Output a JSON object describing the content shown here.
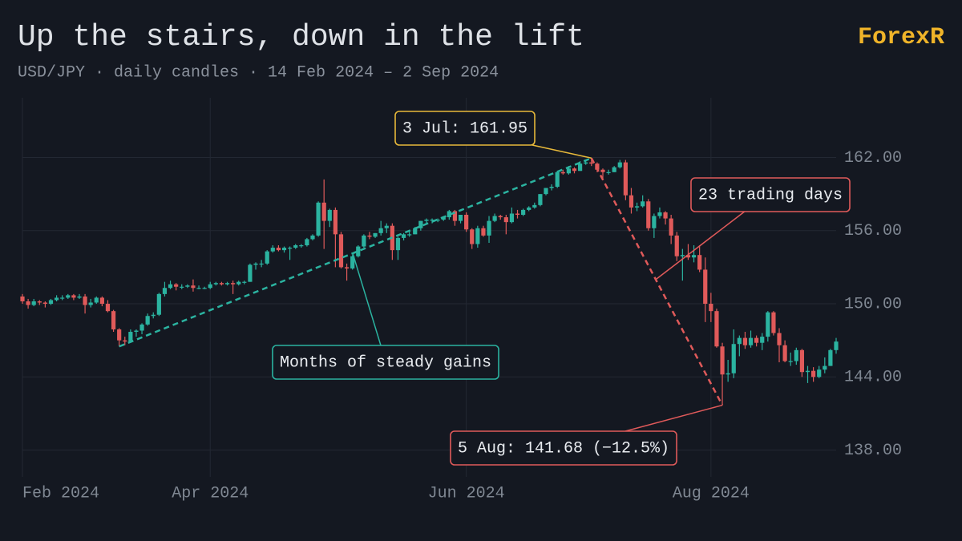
{
  "chart_data": {
    "type": "candlestick",
    "title": "Up the stairs, down in the lift",
    "subtitle": "USD/JPY · daily candles · 14 Feb 2024 – 2 Sep 2024",
    "brand": "ForexR",
    "up_color": "#2bb3a0",
    "down_color": "#e05a5a",
    "grid": true,
    "ylim": [
      135.8,
      166.9
    ],
    "yticks": [
      {
        "value": 138,
        "label": "138.00"
      },
      {
        "value": 144,
        "label": "144.00"
      },
      {
        "value": 150,
        "label": "150.00"
      },
      {
        "value": 156,
        "label": "156.00"
      },
      {
        "value": 162,
        "label": "162.00"
      }
    ],
    "categories": [
      "Feb 2024",
      null,
      null,
      null,
      null,
      null,
      null,
      null,
      null,
      null,
      null,
      null,
      null,
      null,
      null,
      null,
      null,
      null,
      null,
      null,
      null,
      null,
      null,
      null,
      null,
      null,
      null,
      null,
      null,
      null,
      null,
      null,
      null,
      "Apr 2024",
      null,
      null,
      null,
      null,
      null,
      null,
      null,
      null,
      null,
      null,
      null,
      null,
      null,
      null,
      null,
      null,
      null,
      null,
      null,
      null,
      null,
      null,
      null,
      null,
      null,
      null,
      null,
      null,
      null,
      null,
      null,
      null,
      null,
      null,
      null,
      null,
      null,
      null,
      null,
      null,
      null,
      null,
      null,
      null,
      "Jun 2024",
      null,
      null,
      null,
      null,
      null,
      null,
      null,
      null,
      null,
      null,
      null,
      null,
      null,
      null,
      null,
      null,
      null,
      null,
      null,
      null,
      null,
      null,
      null,
      null,
      null,
      null,
      null,
      null,
      null,
      null,
      null,
      null,
      null,
      null,
      null,
      null,
      null,
      null,
      null,
      null,
      null,
      null,
      "Aug 2024",
      null,
      null,
      null,
      null,
      null,
      null,
      null,
      null,
      null,
      null,
      null,
      null,
      null,
      null,
      null,
      null,
      null,
      null,
      null,
      null,
      null,
      null
    ],
    "open": [
      150.6,
      150.2,
      149.9,
      150.2,
      150.1,
      150.0,
      150.3,
      150.5,
      150.5,
      150.7,
      150.5,
      150.6,
      149.9,
      150.1,
      150.5,
      150.0,
      149.4,
      147.9,
      147.0,
      146.9,
      147.7,
      147.8,
      148.3,
      149.0,
      149.1,
      150.8,
      151.3,
      151.6,
      151.4,
      151.4,
      151.5,
      151.3,
      151.3,
      151.3,
      151.6,
      151.7,
      151.6,
      151.7,
      151.6,
      151.8,
      151.8,
      153.2,
      153.3,
      153.3,
      154.3,
      154.6,
      154.4,
      154.6,
      154.6,
      154.8,
      154.8,
      155.3,
      155.6,
      158.3,
      156.8,
      157.7,
      155.7,
      153.0,
      152.9,
      153.9,
      154.7,
      155.6,
      155.5,
      155.8,
      156.2,
      156.4,
      154.4,
      155.4,
      155.7,
      155.7,
      156.2,
      156.8,
      156.9,
      156.9,
      156.9,
      157.1,
      157.6,
      156.8,
      157.3,
      156.1,
      154.9,
      156.2,
      155.6,
      156.8,
      157.2,
      157.1,
      156.7,
      157.4,
      157.3,
      157.7,
      157.9,
      158.1,
      159.0,
      159.5,
      159.6,
      160.8,
      160.7,
      161.1,
      160.9,
      161.5,
      161.6,
      161.5,
      161.0,
      160.8,
      160.8,
      161.2,
      161.6,
      158.9,
      157.9,
      158.0,
      158.4,
      156.2,
      157.2,
      157.5,
      157.0,
      155.6,
      153.9,
      154.0,
      153.8,
      154.0,
      152.8,
      150.0,
      149.4,
      146.5,
      144.2,
      144.3,
      146.7,
      147.2,
      146.6,
      147.2,
      146.8,
      147.3,
      149.3,
      147.6,
      146.6,
      145.3,
      145.3,
      146.2,
      144.4,
      144.5,
      144.0,
      144.6,
      144.9,
      146.2
    ],
    "high": [
      150.8,
      150.4,
      150.4,
      150.3,
      150.2,
      150.4,
      150.7,
      150.7,
      150.8,
      150.8,
      150.8,
      150.8,
      150.4,
      150.6,
      150.6,
      150.3,
      149.5,
      148.0,
      147.3,
      147.9,
      147.9,
      148.4,
      149.2,
      149.3,
      150.9,
      151.8,
      151.9,
      151.7,
      151.6,
      151.6,
      152.0,
      151.5,
      151.4,
      151.8,
      151.8,
      151.8,
      151.8,
      151.9,
      151.9,
      151.9,
      153.3,
      153.4,
      153.6,
      154.4,
      154.8,
      154.8,
      154.7,
      154.7,
      154.9,
      154.9,
      155.4,
      155.7,
      158.4,
      160.2,
      157.8,
      157.9,
      155.9,
      153.3,
      154.0,
      154.8,
      155.7,
      155.9,
      155.8,
      156.8,
      156.6,
      156.6,
      155.5,
      155.8,
      155.9,
      156.3,
      156.8,
      157.0,
      157.0,
      157.0,
      157.2,
      157.7,
      157.7,
      157.3,
      157.5,
      156.2,
      156.4,
      156.4,
      157.2,
      157.4,
      157.3,
      157.3,
      157.9,
      157.7,
      157.8,
      158.0,
      158.3,
      159.0,
      159.5,
      159.8,
      160.9,
      161.0,
      161.3,
      161.2,
      161.7,
      161.8,
      161.95,
      161.6,
      161.1,
      161.0,
      161.3,
      161.8,
      161.8,
      159.5,
      158.3,
      158.9,
      158.6,
      157.4,
      157.9,
      157.6,
      157.3,
      155.9,
      154.5,
      154.9,
      154.8,
      154.8,
      153.8,
      150.9,
      149.6,
      146.8,
      145.4,
      147.9,
      147.4,
      147.7,
      147.8,
      147.4,
      147.6,
      149.4,
      149.4,
      148.0,
      147.0,
      146.0,
      146.4,
      146.3,
      144.9,
      144.8,
      144.9,
      145.6,
      146.3,
      147.2
    ],
    "low": [
      150.0,
      149.6,
      149.8,
      149.9,
      149.7,
      149.9,
      150.2,
      150.3,
      150.4,
      150.3,
      150.4,
      149.2,
      149.7,
      150.0,
      149.8,
      149.3,
      147.7,
      146.5,
      146.6,
      146.8,
      147.3,
      147.5,
      148.2,
      148.8,
      149.0,
      150.6,
      151.2,
      151.1,
      151.2,
      151.3,
      151.0,
      151.2,
      151.2,
      151.2,
      151.5,
      151.5,
      151.5,
      150.8,
      151.5,
      151.6,
      151.8,
      152.8,
      153.0,
      153.2,
      154.2,
      154.3,
      154.2,
      153.6,
      154.5,
      154.6,
      154.7,
      155.2,
      155.5,
      154.5,
      156.3,
      153.0,
      152.9,
      151.9,
      152.8,
      153.8,
      154.6,
      155.3,
      155.4,
      155.6,
      155.8,
      153.6,
      153.6,
      155.2,
      155.5,
      155.7,
      156.0,
      156.5,
      156.6,
      156.7,
      156.8,
      156.9,
      156.4,
      156.6,
      155.9,
      154.5,
      154.6,
      155.5,
      155.0,
      156.7,
      156.9,
      155.7,
      156.6,
      157.0,
      157.2,
      157.6,
      157.8,
      158.0,
      158.9,
      159.3,
      159.5,
      160.6,
      160.6,
      160.7,
      160.9,
      161.4,
      161.3,
      160.8,
      160.3,
      160.6,
      160.8,
      161.1,
      158.5,
      157.4,
      157.6,
      157.9,
      156.0,
      155.4,
      157.0,
      156.5,
      154.9,
      153.5,
      151.9,
      153.6,
      153.4,
      152.6,
      148.5,
      148.5,
      146.4,
      141.68,
      143.6,
      143.9,
      145.7,
      146.3,
      146.4,
      146.5,
      146.2,
      146.9,
      147.4,
      145.2,
      145.2,
      144.9,
      145.0,
      144.0,
      143.5,
      143.6,
      143.9,
      144.3,
      144.9,
      145.9
    ],
    "close": [
      150.2,
      149.9,
      150.2,
      150.1,
      150.0,
      150.3,
      150.5,
      150.5,
      150.7,
      150.5,
      150.6,
      149.9,
      150.1,
      150.5,
      150.0,
      149.4,
      147.9,
      147.0,
      146.9,
      147.7,
      147.8,
      148.3,
      149.0,
      149.1,
      150.8,
      151.3,
      151.6,
      151.4,
      151.4,
      151.5,
      151.3,
      151.3,
      151.3,
      151.6,
      151.7,
      151.6,
      151.7,
      151.6,
      151.8,
      151.8,
      153.2,
      153.3,
      153.3,
      154.3,
      154.6,
      154.4,
      154.6,
      154.6,
      154.8,
      154.8,
      155.3,
      155.6,
      158.3,
      156.8,
      157.7,
      155.7,
      153.0,
      152.9,
      153.9,
      154.7,
      155.6,
      155.5,
      155.8,
      156.2,
      156.4,
      154.4,
      155.4,
      155.7,
      155.7,
      156.2,
      156.8,
      156.9,
      156.9,
      156.9,
      157.1,
      157.6,
      156.8,
      157.3,
      156.1,
      154.9,
      156.2,
      155.6,
      156.8,
      157.2,
      157.1,
      156.7,
      157.4,
      157.3,
      157.7,
      157.9,
      158.1,
      159.0,
      159.5,
      159.6,
      160.8,
      160.7,
      161.1,
      160.9,
      161.5,
      161.6,
      161.5,
      161.0,
      160.8,
      160.8,
      161.2,
      161.6,
      158.9,
      157.9,
      158.0,
      158.4,
      156.2,
      157.2,
      157.5,
      157.0,
      155.6,
      153.9,
      154.0,
      153.8,
      154.0,
      152.8,
      150.0,
      149.4,
      146.5,
      144.2,
      144.3,
      146.7,
      147.2,
      146.6,
      147.2,
      146.8,
      147.3,
      149.3,
      147.6,
      146.6,
      145.3,
      145.3,
      146.2,
      144.4,
      144.5,
      144.0,
      144.6,
      144.9,
      146.2,
      146.9
    ],
    "annotations": [
      "3 Jul: 161.95",
      "Months of steady gains",
      "23 trading days",
      "5 Aug: 141.68 (−12.5%)"
    ]
  }
}
